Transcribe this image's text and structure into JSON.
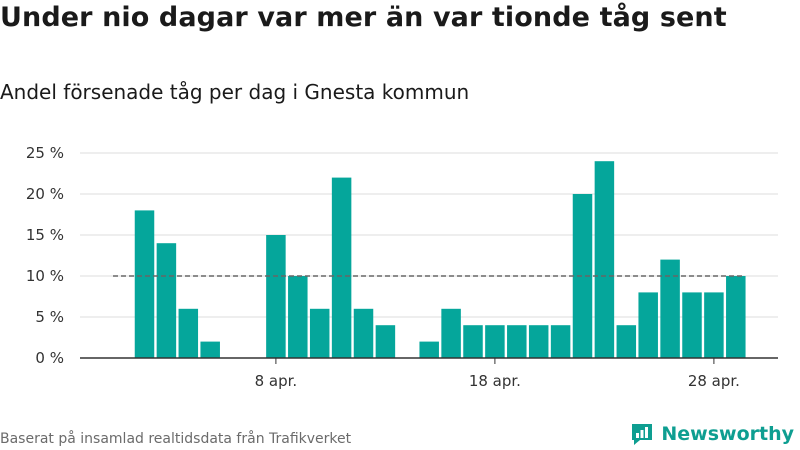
{
  "title": "Under nio dagar var mer än var tionde tåg sent",
  "subtitle": "Andel försenade tåg per dag i Gnesta kommun",
  "footer": "Baserat på insamlad realtidsdata från Trafikverket",
  "brand": {
    "name": "Newsworthy",
    "icon": "bar-chart-logo-icon"
  },
  "colors": {
    "bar": "#05a69b",
    "reference": "#666666",
    "grid": "#dddddd",
    "axis": "#333333"
  },
  "chart_data": {
    "type": "bar",
    "x": [
      "2 apr.",
      "3 apr.",
      "4 apr.",
      "5 apr.",
      "6 apr.",
      "7 apr.",
      "8 apr.",
      "9 apr.",
      "10 apr.",
      "11 apr.",
      "12 apr.",
      "13 apr.",
      "14 apr.",
      "15 apr.",
      "16 apr.",
      "17 apr.",
      "18 apr.",
      "19 apr.",
      "20 apr.",
      "21 apr.",
      "22 apr.",
      "23 apr.",
      "24 apr.",
      "25 apr.",
      "26 apr.",
      "27 apr.",
      "28 apr.",
      "29 apr.",
      "30 apr."
    ],
    "values": [
      18,
      14,
      6,
      2,
      0,
      0,
      15,
      10,
      6,
      22,
      6,
      4,
      0,
      2,
      6,
      4,
      4,
      4,
      4,
      4,
      20,
      24,
      4,
      8,
      12,
      8,
      8,
      10,
      0
    ],
    "y_ticks": [
      "0 %",
      "5 %",
      "10 %",
      "15 %",
      "20 %",
      "25 %"
    ],
    "x_ticks": [
      {
        "label": "8 apr.",
        "x": "8 apr."
      },
      {
        "label": "18 apr.",
        "x": "18 apr."
      },
      {
        "label": "28 apr.",
        "x": "28 apr."
      }
    ],
    "ylim": [
      0,
      25
    ],
    "reference_line": 10,
    "grid": true
  }
}
